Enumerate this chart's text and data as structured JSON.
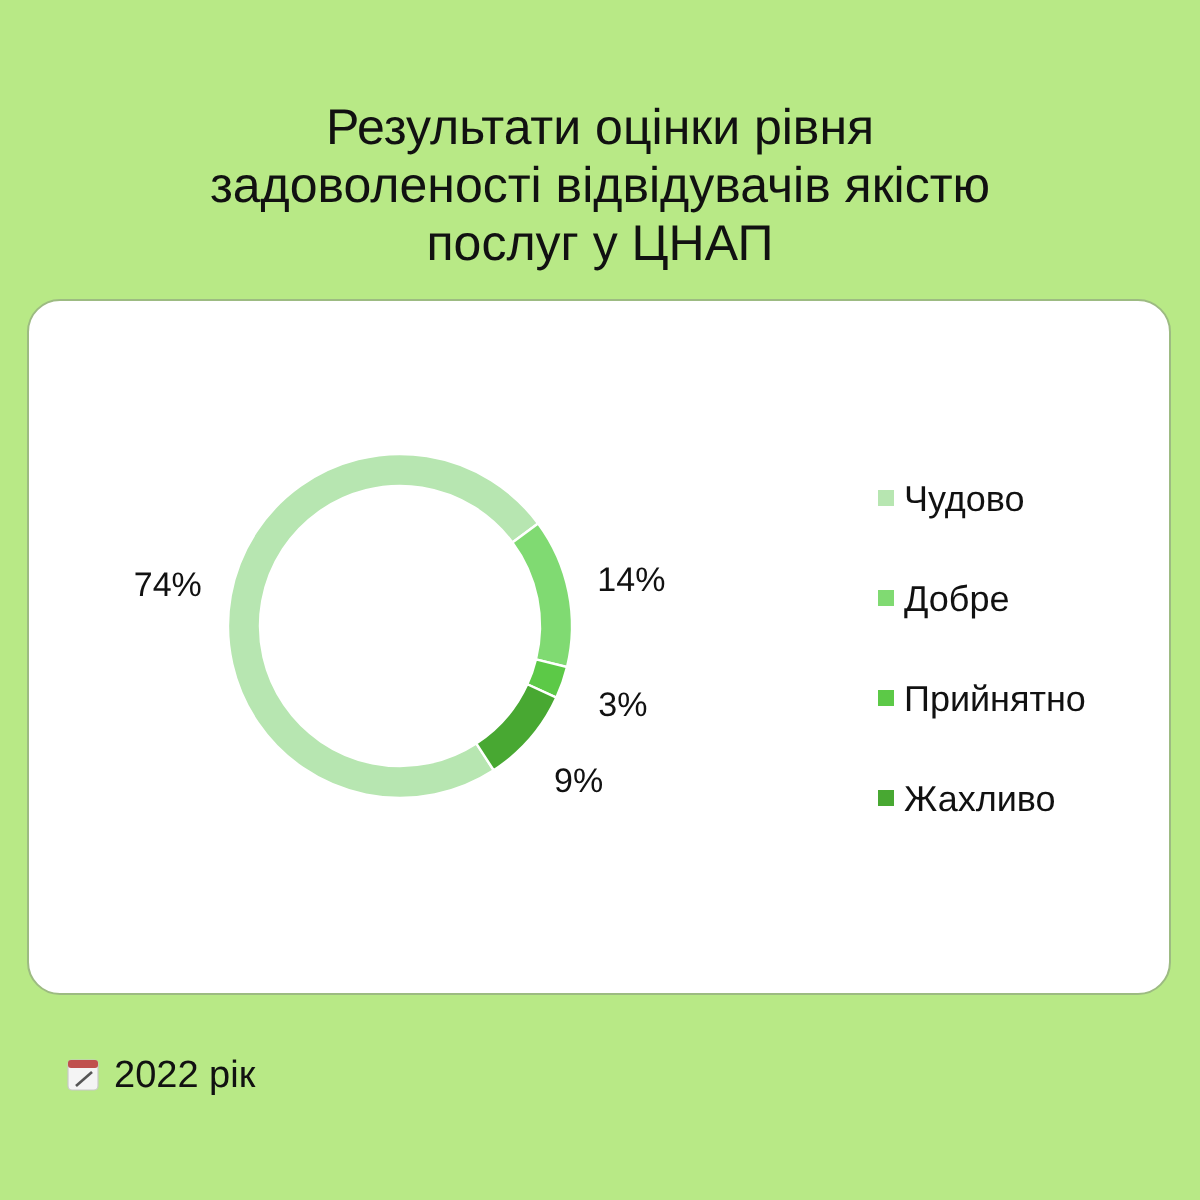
{
  "chart_data": {
    "type": "donut",
    "title": "Результати оцінки рівня задоволеності відвідувачів якістю послуг у ЦНАП",
    "categories": [
      "Чудово",
      "Добре",
      "Прийнятно",
      "Жахливо"
    ],
    "values": [
      74,
      14,
      3,
      9
    ],
    "value_labels": [
      "74%",
      "14%",
      "3%",
      "9%"
    ],
    "colors": [
      "#b7e6b1",
      "#80da72",
      "#5cc947",
      "#48a832"
    ],
    "legend": "right",
    "annotations": [
      "2022 рік"
    ]
  }
}
